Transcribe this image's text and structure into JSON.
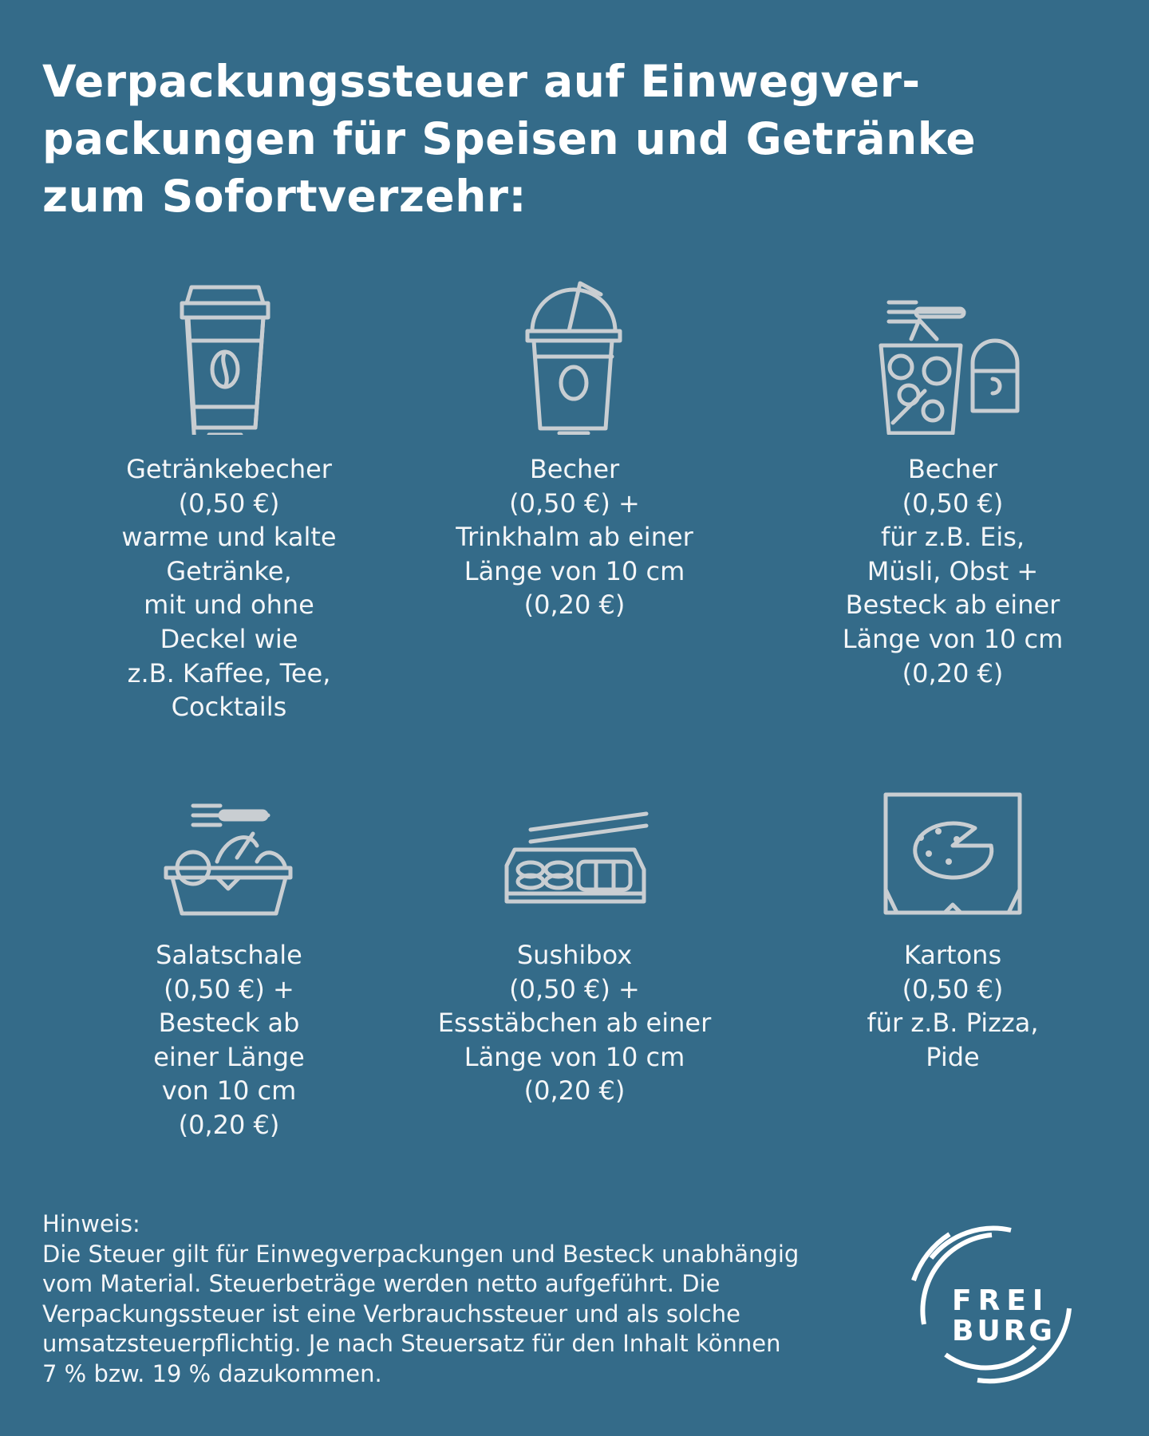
{
  "title": "Verpackungssteuer auf Einwegver-\npackungen für Speisen und Getränke\nzum Sofortverzehr:",
  "items": [
    {
      "icon": "coffee-cup-icon",
      "text": "Getränkebecher\n(0,50 €)\nwarme und kalte\nGetränke,\nmit und ohne\nDeckel wie\nz.B. Kaffee, Tee,\nCocktails"
    },
    {
      "icon": "cup-with-straw-icon",
      "text": "Becher\n(0,50 €) +\nTrinkhalm ab einer\nLänge von 10 cm\n(0,20 €)"
    },
    {
      "icon": "dessert-cup-fork-icon",
      "text": "Becher\n(0,50 €)\nfür z.B. Eis,\nMüsli, Obst +\nBesteck ab einer\nLänge von 10 cm\n(0,20 €)"
    },
    {
      "icon": "salad-bowl-fork-icon",
      "text": "Salatschale\n(0,50 €) +\nBesteck ab\neiner Länge\nvon 10 cm\n(0,20 €)"
    },
    {
      "icon": "sushi-box-chopsticks-icon",
      "text": "Sushibox\n(0,50 €) +\nEssstäbchen ab einer\nLänge von 10 cm\n(0,20 €)"
    },
    {
      "icon": "pizza-box-icon",
      "text": "Kartons\n(0,50 €)\nfür z.B. Pizza,\nPide"
    }
  ],
  "note": {
    "label": "Hinweis:",
    "text": "Die Steuer gilt für Einwegverpackungen und Besteck unabhängig vom Material. Steuerbeträge werden netto aufgeführt. Die Verpackungssteuer ist eine Verbrauchssteuer und als solche umsatzsteuerpflichtig. Je nach Steuersatz für den Inhalt können 7 % bzw. 19 % dazukommen."
  },
  "logo": {
    "line1": "FREI",
    "line2": "BURG"
  },
  "colors": {
    "background": "#346b89",
    "icon": "#c9ced2",
    "text": "#ffffff"
  }
}
